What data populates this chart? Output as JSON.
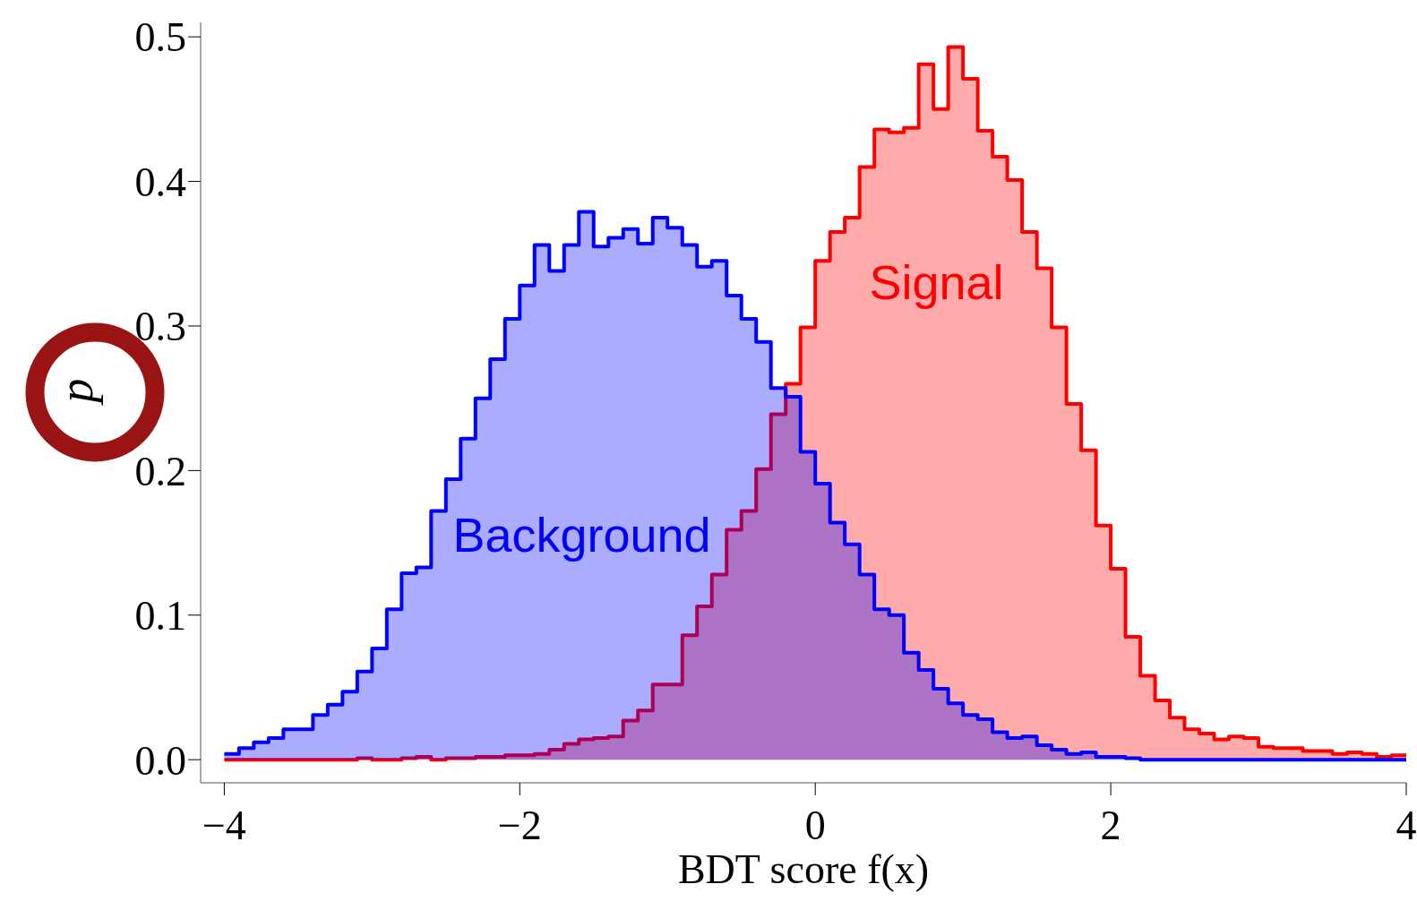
{
  "chart_data": {
    "type": "histogram",
    "xlabel": "BDT score f(x)",
    "ylabel": "p",
    "bins": [
      -4.0,
      -3.9,
      -3.8,
      -3.7,
      -3.6,
      -3.5,
      -3.4,
      -3.3,
      -3.2,
      -3.1,
      -3.0,
      -2.9,
      -2.8,
      -2.7,
      -2.6,
      -2.5,
      -2.4,
      -2.3,
      -2.2,
      -2.1,
      -2.0,
      -1.9,
      -1.8,
      -1.7,
      -1.6,
      -1.5,
      -1.4,
      -1.3,
      -1.2,
      -1.1,
      -1.0,
      -0.9,
      -0.8,
      -0.7,
      -0.6,
      -0.5,
      -0.4,
      -0.3,
      -0.2,
      -0.1,
      0.0,
      0.1,
      0.2,
      0.3,
      0.4,
      0.5,
      0.6,
      0.7,
      0.8,
      0.9,
      1.0,
      1.1,
      1.2,
      1.3,
      1.4,
      1.5,
      1.6,
      1.7,
      1.8,
      1.9,
      2.0,
      2.1,
      2.2,
      2.3,
      2.4,
      2.5,
      2.6,
      2.7,
      2.8,
      2.9,
      3.0,
      3.1,
      3.2,
      3.3,
      3.4,
      3.5,
      3.6,
      3.7,
      3.8,
      3.9,
      4.0
    ],
    "series": [
      {
        "name": "Signal",
        "color": "#ff0000",
        "values": [
          0,
          0,
          0,
          0,
          0,
          0,
          0,
          0,
          0,
          0.001,
          0,
          0,
          0.001,
          0.002,
          0,
          0.001,
          0.001,
          0.002,
          0.002,
          0.003,
          0.003,
          0.004,
          0.007,
          0.011,
          0.014,
          0.015,
          0.016,
          0.027,
          0.034,
          0.052,
          0.052,
          0.086,
          0.106,
          0.128,
          0.159,
          0.172,
          0.201,
          0.239,
          0.26,
          0.299,
          0.345,
          0.365,
          0.375,
          0.41,
          0.436,
          0.434,
          0.437,
          0.481,
          0.45,
          0.493,
          0.471,
          0.435,
          0.417,
          0.401,
          0.365,
          0.34,
          0.299,
          0.246,
          0.214,
          0.162,
          0.132,
          0.085,
          0.058,
          0.041,
          0.029,
          0.021,
          0.018,
          0.014,
          0.016,
          0.015,
          0.009,
          0.008,
          0.008,
          0.006,
          0.006,
          0.004,
          0.005,
          0.004,
          0.002,
          0.003
        ]
      },
      {
        "name": "Background",
        "color": "#0000ff",
        "values": [
          0.004,
          0.008,
          0.012,
          0.015,
          0.021,
          0.021,
          0.031,
          0.038,
          0.047,
          0.061,
          0.077,
          0.104,
          0.129,
          0.133,
          0.172,
          0.194,
          0.222,
          0.25,
          0.277,
          0.305,
          0.328,
          0.356,
          0.338,
          0.356,
          0.379,
          0.355,
          0.361,
          0.367,
          0.357,
          0.375,
          0.368,
          0.356,
          0.341,
          0.345,
          0.321,
          0.305,
          0.289,
          0.257,
          0.251,
          0.213,
          0.191,
          0.164,
          0.149,
          0.128,
          0.104,
          0.1,
          0.074,
          0.062,
          0.049,
          0.039,
          0.031,
          0.028,
          0.019,
          0.015,
          0.016,
          0.01,
          0.007,
          0.004,
          0.005,
          0.002,
          0.002,
          0.001,
          0,
          0,
          0,
          0,
          0,
          0,
          0,
          0,
          0,
          0,
          0,
          0,
          0,
          0,
          0,
          0,
          0,
          0
        ]
      }
    ],
    "xlim": [
      -4.16,
      4.0
    ],
    "xticks": [
      {
        "value": -4,
        "label": "−4"
      },
      {
        "value": -2,
        "label": "−2"
      },
      0,
      2,
      4
    ],
    "ylim": [
      -0.016,
      0.51
    ],
    "yticks": [
      {
        "value": 0,
        "label": "0.0"
      },
      0.1,
      0.2,
      0.3,
      0.4,
      0.5
    ]
  }
}
